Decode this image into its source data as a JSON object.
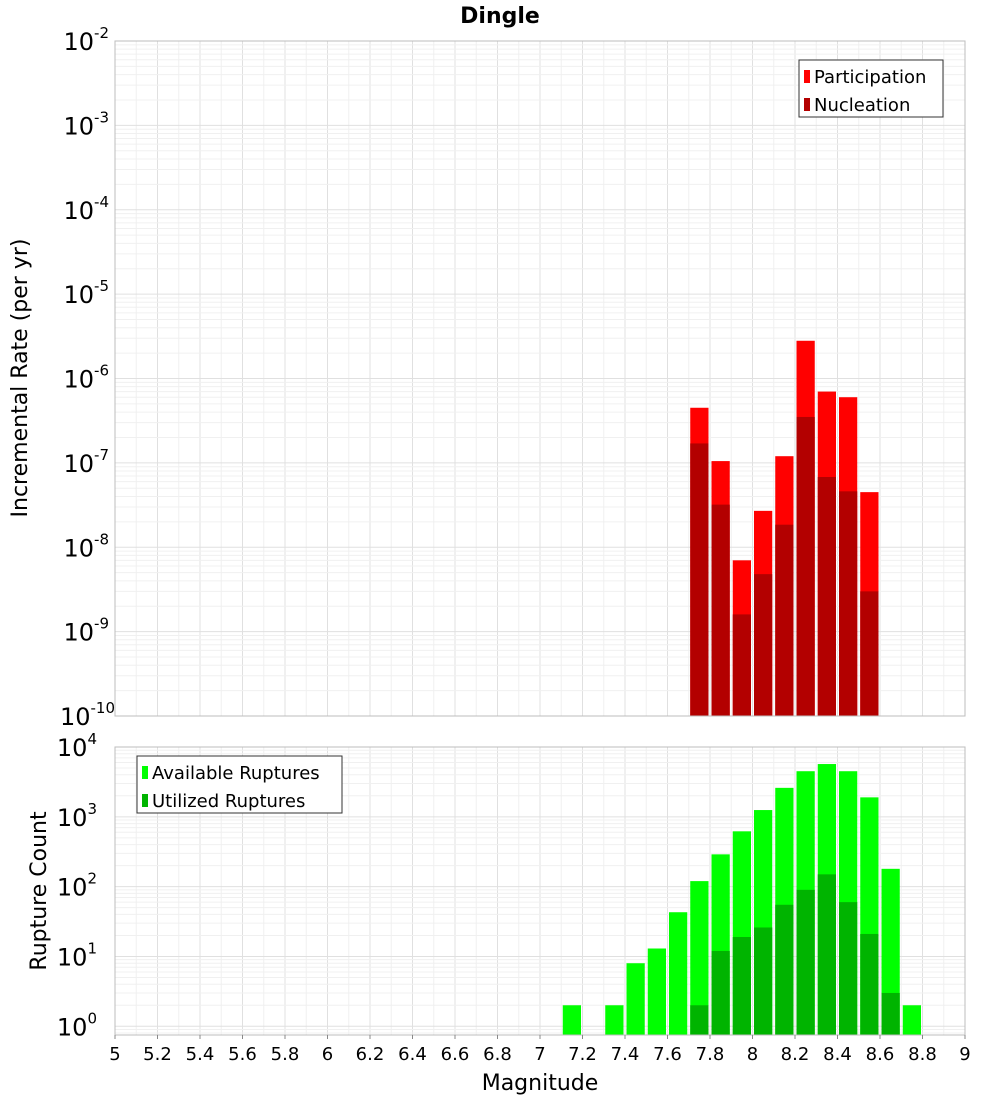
{
  "chart_data": [
    {
      "id": "top",
      "type": "bar",
      "title": "Dingle",
      "xlabel": "",
      "ylabel": "Incremental Rate (per yr)",
      "yscale": "log",
      "ylim_exp": [
        -10,
        -2
      ],
      "xlim": [
        5,
        9
      ],
      "bin_width": 0.1,
      "legend_position": "top-right",
      "series": [
        {
          "name": "Participation",
          "color": "#ff0000",
          "points": [
            {
              "x": 7.75,
              "y": 4.5e-07
            },
            {
              "x": 7.85,
              "y": 1.05e-07
            },
            {
              "x": 7.95,
              "y": 7e-09
            },
            {
              "x": 8.05,
              "y": 2.7e-08
            },
            {
              "x": 8.15,
              "y": 1.2e-07
            },
            {
              "x": 8.25,
              "y": 2.8e-06
            },
            {
              "x": 8.35,
              "y": 7e-07
            },
            {
              "x": 8.45,
              "y": 6e-07
            },
            {
              "x": 8.55,
              "y": 4.5e-08
            }
          ]
        },
        {
          "name": "Nucleation",
          "color": "#b30000",
          "points": [
            {
              "x": 7.75,
              "y": 1.7e-07
            },
            {
              "x": 7.85,
              "y": 3.2e-08
            },
            {
              "x": 7.95,
              "y": 1.6e-09
            },
            {
              "x": 8.05,
              "y": 4.8e-09
            },
            {
              "x": 8.15,
              "y": 1.85e-08
            },
            {
              "x": 8.25,
              "y": 3.5e-07
            },
            {
              "x": 8.35,
              "y": 6.8e-08
            },
            {
              "x": 8.45,
              "y": 4.6e-08
            },
            {
              "x": 8.55,
              "y": 3e-09
            }
          ]
        }
      ]
    },
    {
      "id": "bottom",
      "type": "bar",
      "title": "",
      "xlabel": "Magnitude",
      "ylabel": "Rupture Count",
      "yscale": "log",
      "ylim": [
        0.75,
        10000
      ],
      "y_tick_exps": [
        0,
        1,
        2,
        3,
        4
      ],
      "xlim": [
        5,
        9
      ],
      "x_ticks": [
        "5",
        "5.2",
        "5.4",
        "5.6",
        "5.8",
        "6",
        "6.2",
        "6.4",
        "6.6",
        "6.8",
        "7",
        "7.2",
        "7.4",
        "7.6",
        "7.8",
        "8",
        "8.2",
        "8.4",
        "8.6",
        "8.8",
        "9"
      ],
      "bin_width": 0.1,
      "legend_position": "top-left",
      "series": [
        {
          "name": "Available Ruptures",
          "color": "#00ff00",
          "points": [
            {
              "x": 7.15,
              "y": 2
            },
            {
              "x": 7.35,
              "y": 2
            },
            {
              "x": 7.45,
              "y": 8
            },
            {
              "x": 7.55,
              "y": 13
            },
            {
              "x": 7.65,
              "y": 43
            },
            {
              "x": 7.75,
              "y": 120
            },
            {
              "x": 7.85,
              "y": 290
            },
            {
              "x": 7.95,
              "y": 620
            },
            {
              "x": 8.05,
              "y": 1250
            },
            {
              "x": 8.15,
              "y": 2600
            },
            {
              "x": 8.25,
              "y": 4500
            },
            {
              "x": 8.35,
              "y": 5700
            },
            {
              "x": 8.45,
              "y": 4500
            },
            {
              "x": 8.55,
              "y": 1900
            },
            {
              "x": 8.65,
              "y": 180
            },
            {
              "x": 8.75,
              "y": 2
            }
          ]
        },
        {
          "name": "Utilized Ruptures",
          "color": "#00b400",
          "points": [
            {
              "x": 7.75,
              "y": 2
            },
            {
              "x": 7.85,
              "y": 12
            },
            {
              "x": 7.95,
              "y": 19
            },
            {
              "x": 8.05,
              "y": 26
            },
            {
              "x": 8.15,
              "y": 55
            },
            {
              "x": 8.25,
              "y": 90
            },
            {
              "x": 8.35,
              "y": 150
            },
            {
              "x": 8.45,
              "y": 60
            },
            {
              "x": 8.55,
              "y": 21
            },
            {
              "x": 8.65,
              "y": 3
            }
          ]
        }
      ]
    }
  ],
  "labels": {
    "title": "Dingle",
    "top_ylabel": "Incremental Rate (per yr)",
    "bottom_ylabel": "Rupture Count",
    "xlabel": "Magnitude",
    "legend_top": [
      "Participation",
      "Nucleation"
    ],
    "legend_bottom": [
      "Available Ruptures",
      "Utilized Ruptures"
    ],
    "exp_base": "10",
    "top_exps": [
      "-2",
      "-3",
      "-4",
      "-5",
      "-6",
      "-7",
      "-8",
      "-9",
      "-10"
    ],
    "bottom_exps": [
      "0",
      "1",
      "2",
      "3",
      "4"
    ]
  }
}
